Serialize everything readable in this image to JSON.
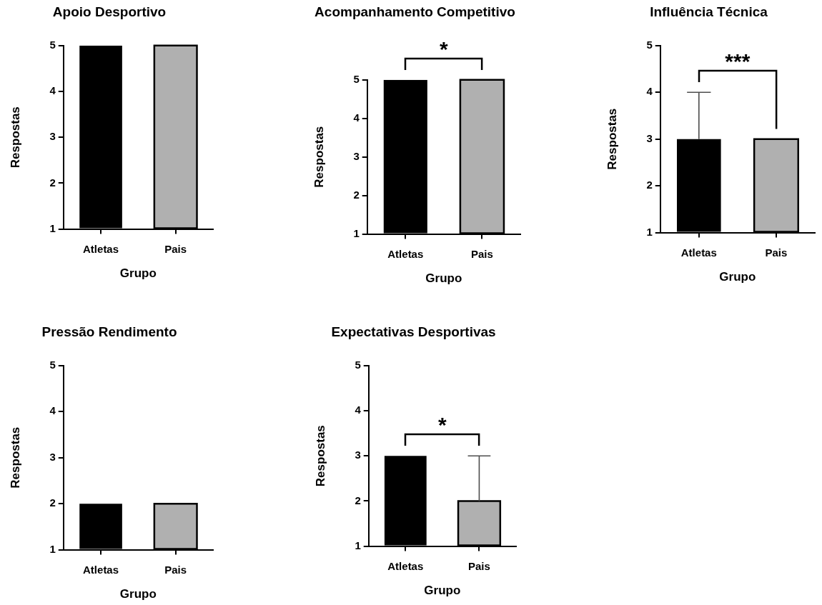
{
  "chart_data": [
    {
      "type": "bar",
      "title": "Apoio Desportivo",
      "xlabel": "Grupo",
      "ylabel": "Respostas",
      "categories": [
        "Atletas",
        "Pais"
      ],
      "values": [
        5,
        5
      ],
      "colors": [
        "#000000",
        "#b0b0b0"
      ],
      "ylim": [
        1,
        5
      ],
      "yticks": [
        1,
        2,
        3,
        4,
        5
      ]
    },
    {
      "type": "bar",
      "title": "Acompanhamento Competitivo",
      "xlabel": "Grupo",
      "ylabel": "Respostas",
      "categories": [
        "Atletas",
        "Pais"
      ],
      "values": [
        5,
        5
      ],
      "colors": [
        "#000000",
        "#b0b0b0"
      ],
      "ylim": [
        1,
        5
      ],
      "yticks": [
        1,
        2,
        3,
        4,
        5
      ],
      "annotations": [
        "*"
      ]
    },
    {
      "type": "bar",
      "title": "Influência Técnica",
      "xlabel": "Grupo",
      "ylabel": "Respostas",
      "categories": [
        "Atletas",
        "Pais"
      ],
      "values": [
        3,
        3
      ],
      "errors": [
        [
          3,
          4
        ],
        null
      ],
      "colors": [
        "#000000",
        "#b0b0b0"
      ],
      "ylim": [
        1,
        5
      ],
      "yticks": [
        1,
        2,
        3,
        4,
        5
      ],
      "annotations": [
        "***"
      ]
    },
    {
      "type": "bar",
      "title": "Pressão Rendimento",
      "xlabel": "Grupo",
      "ylabel": "Respostas",
      "categories": [
        "Atletas",
        "Pais"
      ],
      "values": [
        2,
        2
      ],
      "colors": [
        "#000000",
        "#b0b0b0"
      ],
      "ylim": [
        1,
        5
      ],
      "yticks": [
        1,
        2,
        3,
        4,
        5
      ]
    },
    {
      "type": "bar",
      "title": "Expectativas Desportivas",
      "xlabel": "Grupo",
      "ylabel": "Respostas",
      "categories": [
        "Atletas",
        "Pais"
      ],
      "values": [
        3,
        2
      ],
      "errors": [
        null,
        [
          2,
          3
        ]
      ],
      "colors": [
        "#000000",
        "#b0b0b0"
      ],
      "ylim": [
        1,
        5
      ],
      "yticks": [
        1,
        2,
        3,
        4,
        5
      ],
      "annotations": [
        "*"
      ]
    }
  ]
}
